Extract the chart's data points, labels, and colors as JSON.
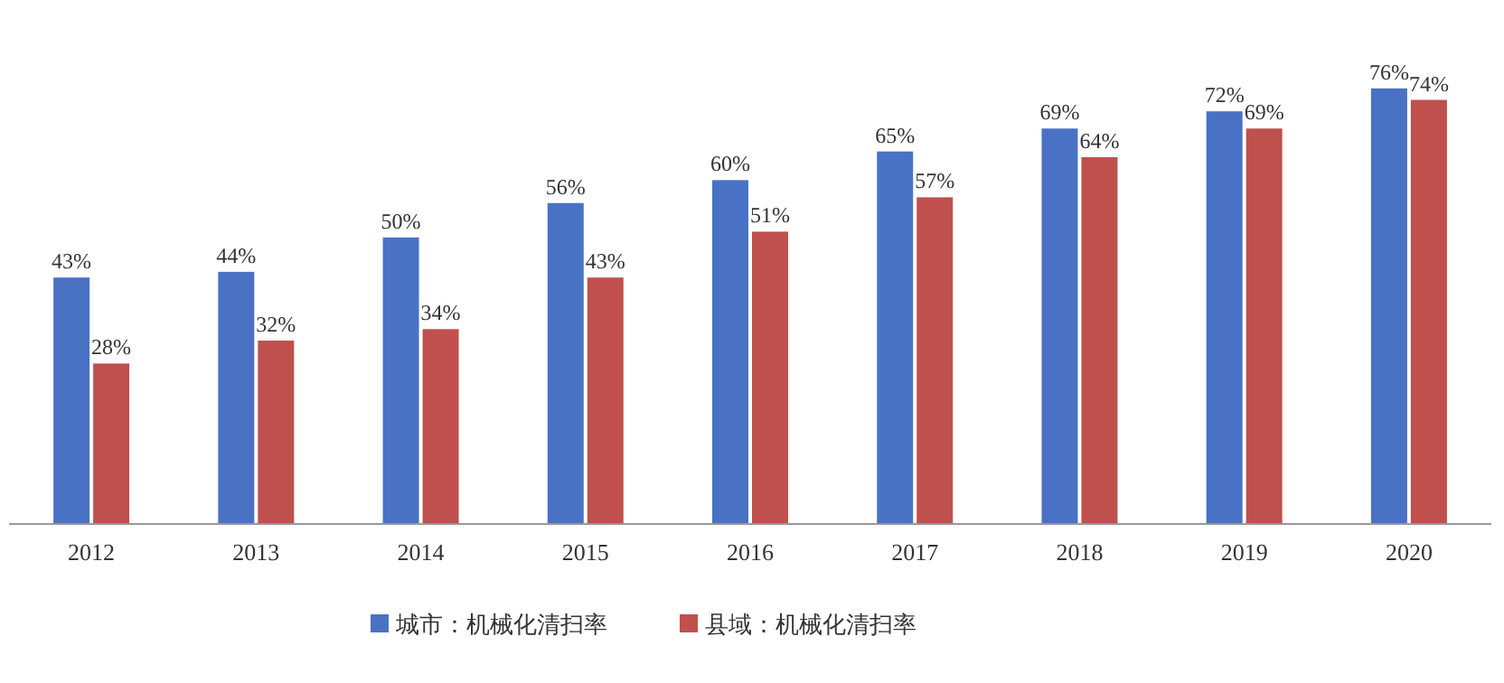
{
  "chart_data": {
    "type": "bar",
    "categories": [
      "2012",
      "2013",
      "2014",
      "2015",
      "2016",
      "2017",
      "2018",
      "2019",
      "2020"
    ],
    "series": [
      {
        "name": "城市：机械化清扫率",
        "color": "#4a72c4",
        "values": [
          43,
          44,
          50,
          56,
          60,
          65,
          69,
          72,
          76
        ],
        "value_labels": [
          "43%",
          "44%",
          "50%",
          "56%",
          "60%",
          "65%",
          "69%",
          "72%",
          "76%"
        ]
      },
      {
        "name": "县域：机械化清扫率",
        "color": "#c0504d",
        "values": [
          28,
          32,
          34,
          43,
          51,
          57,
          64,
          69,
          74
        ],
        "value_labels": [
          "28%",
          "32%",
          "34%",
          "43%",
          "51%",
          "57%",
          "64%",
          "69%",
          "74%"
        ]
      }
    ],
    "legend": "bottom"
  }
}
